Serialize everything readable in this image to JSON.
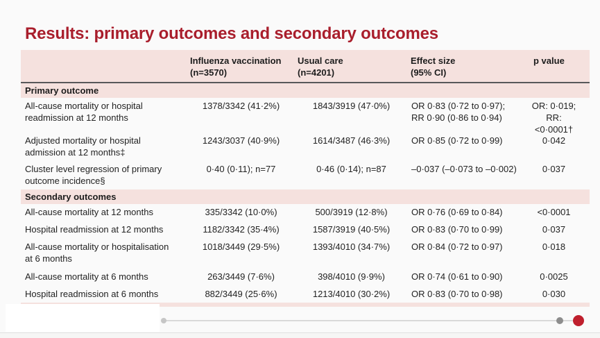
{
  "slide": {
    "title": "Results: primary outcomes and secondary outcomes"
  },
  "colors": {
    "accent_red": "#a91e2c",
    "table_pink": "#f5e1de",
    "rule_gray": "#58585a",
    "handle_red": "#bf1f2d",
    "text": "#222222"
  },
  "table": {
    "columns": [
      "",
      "Influenza vaccination\n(n=3570)",
      "Usual care\n(n=4201)",
      "Effect size\n(95% CI)",
      "p value"
    ],
    "section_primary": "Primary outcome",
    "section_secondary": "Secondary outcomes",
    "rows": [
      {
        "label": "All-cause mortality or hospital\nreadmission at 12 months",
        "vaccination": "1378/3342 (41·2%)",
        "usual_care": "1843/3919 (47·0%)",
        "effect": "OR 0·83 (0·72 to 0·97);\nRR 0·90 (0·86 to 0·94)",
        "p": "OR: 0·019;\nRR: <0·0001†"
      },
      {
        "label": "Adjusted mortality or hospital\nadmission at 12 months‡",
        "vaccination": "1243/3037 (40·9%)",
        "usual_care": "1614/3487 (46·3%)",
        "effect": "OR 0·85 (0·72 to 0·99)",
        "p": "0·042"
      },
      {
        "label": "Cluster level regression of primary\noutcome incidence§",
        "vaccination": "0·40 (0·11); n=77",
        "usual_care": "0·46 (0·14); n=87",
        "effect": "–0·037 (–0·073 to –0·002)",
        "p": "0·037"
      },
      {
        "label": "All-cause mortality at 12 months",
        "vaccination": "335/3342 (10·0%)",
        "usual_care": "500/3919 (12·8%)",
        "effect": "OR 0·76 (0·69 to 0·84)",
        "p": "<0·0001"
      },
      {
        "label": "Hospital readmission at 12 months",
        "vaccination": "1182/3342 (35·4%)",
        "usual_care": "1587/3919 (40·5%)",
        "effect": "OR 0·83 (0·70 to 0·99)",
        "p": "0·037"
      },
      {
        "label": "All-cause mortality or hospitalisation\nat 6 months",
        "vaccination": "1018/3449 (29·5%)",
        "usual_care": "1393/4010 (34·7%)",
        "effect": "OR 0·84 (0·72 to 0·97)",
        "p": "0·018"
      },
      {
        "label": "All-cause mortality at 6 months",
        "vaccination": "263/3449 (7·6%)",
        "usual_care": "398/4010 (9·9%)",
        "effect": "OR 0·74 (0·61 to 0·90)",
        "p": "0·0025"
      },
      {
        "label": "Hospital readmission at 6 months",
        "vaccination": "882/3449 (25·6%)",
        "usual_care": "1213/4010 (30·2%)",
        "effect": "OR 0·83 (0·70 to 0·98)",
        "p": "0·030"
      }
    ]
  },
  "pagination": {
    "icons": {
      "start": "slider-start-dot",
      "step": "slider-step-dot",
      "handle": "slider-handle-red-dot"
    }
  }
}
